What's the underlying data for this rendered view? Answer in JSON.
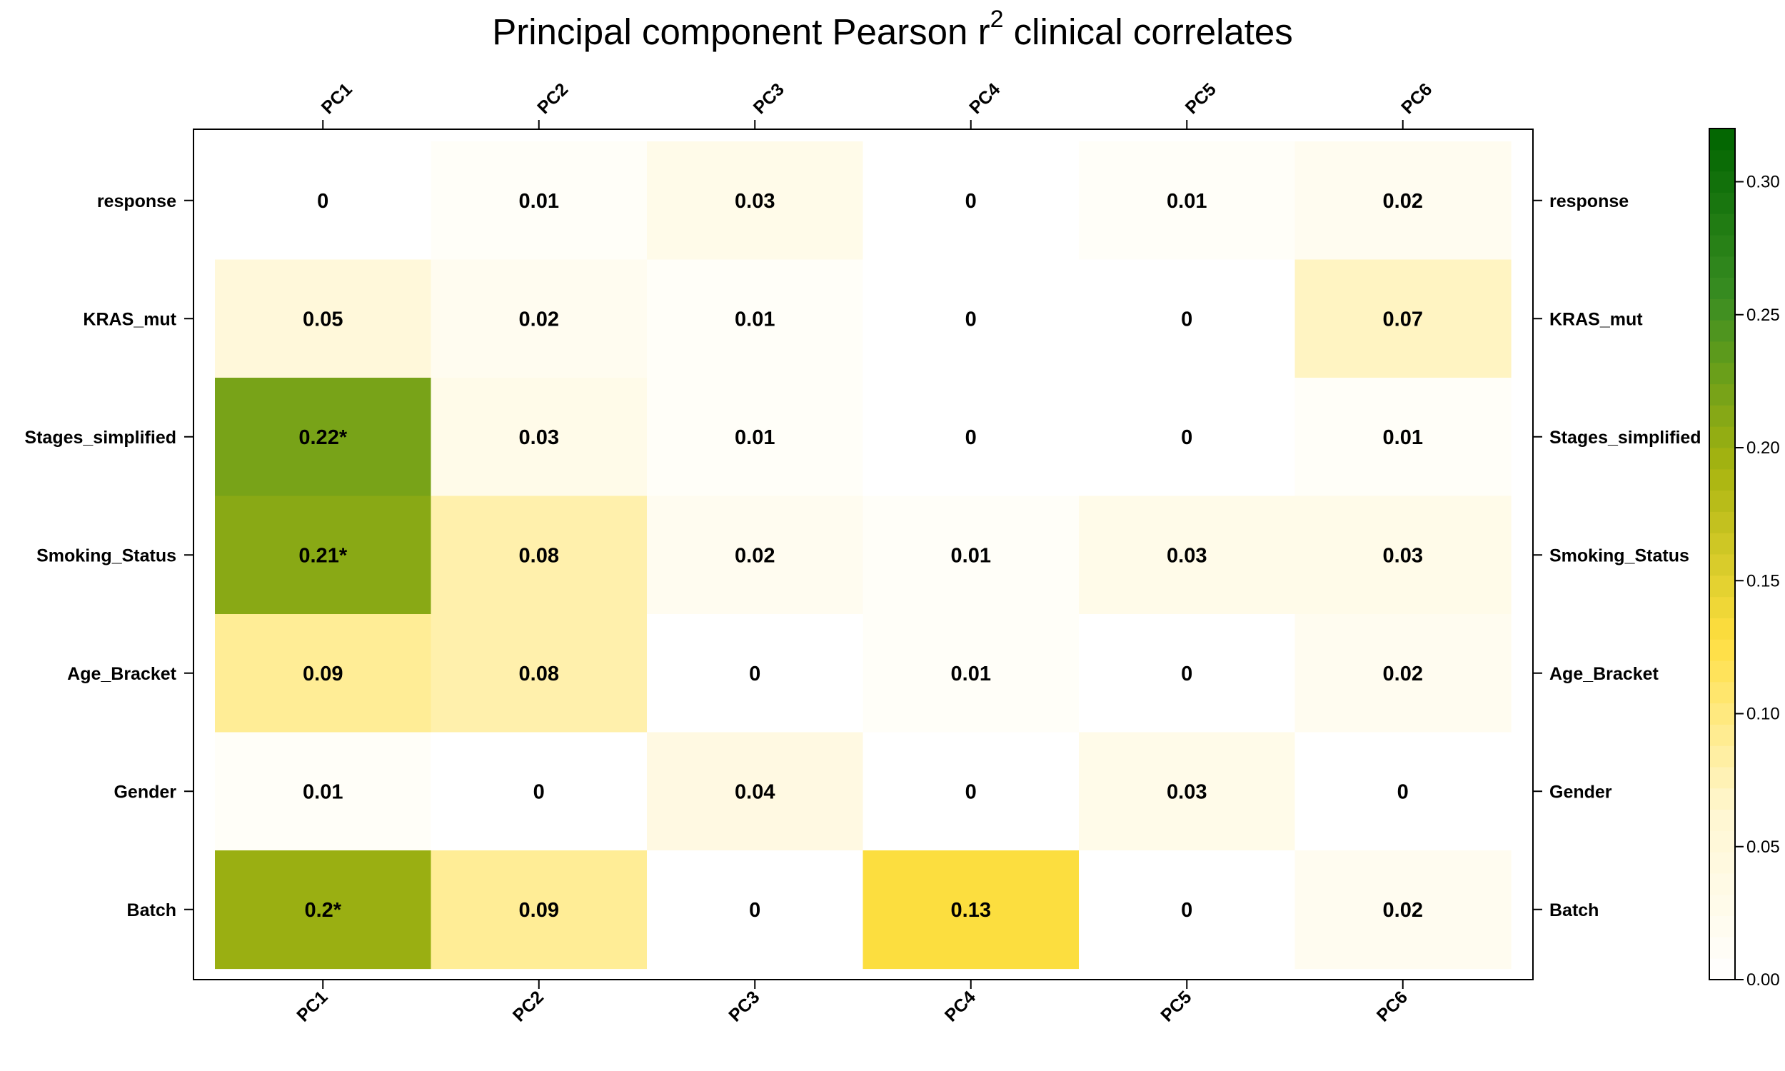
{
  "chart_data": {
    "type": "heatmap",
    "title": "Principal component Pearson r",
    "title_superscript": "2",
    "title_suffix": " clinical correlates",
    "columns": [
      "PC1",
      "PC2",
      "PC3",
      "PC4",
      "PC5",
      "PC6"
    ],
    "rows": [
      "response",
      "KRAS_mut",
      "Stages_simplified",
      "Smoking_Status",
      "Age_Bracket",
      "Gender",
      "Batch"
    ],
    "values": [
      [
        0,
        0.01,
        0.03,
        0,
        0.01,
        0.02
      ],
      [
        0.05,
        0.02,
        0.01,
        0,
        0,
        0.07
      ],
      [
        0.22,
        0.03,
        0.01,
        0,
        0,
        0.01
      ],
      [
        0.21,
        0.08,
        0.02,
        0.01,
        0.03,
        0.03
      ],
      [
        0.09,
        0.08,
        0,
        0.01,
        0,
        0.02
      ],
      [
        0.01,
        0,
        0.04,
        0,
        0.03,
        0
      ],
      [
        0.2,
        0.09,
        0,
        0.13,
        0,
        0.02
      ]
    ],
    "labels": [
      [
        "0",
        "0.01",
        "0.03",
        "0",
        "0.01",
        "0.02"
      ],
      [
        "0.05",
        "0.02",
        "0.01",
        "0",
        "0",
        "0.07"
      ],
      [
        "0.22*",
        "0.03",
        "0.01",
        "0",
        "0",
        "0.01"
      ],
      [
        "0.21*",
        "0.08",
        "0.02",
        "0.01",
        "0.03",
        "0.03"
      ],
      [
        "0.09",
        "0.08",
        "0",
        "0.01",
        "0",
        "0.02"
      ],
      [
        "0.01",
        "0",
        "0.04",
        "0",
        "0.03",
        "0"
      ],
      [
        "0.2*",
        "0.09",
        "0",
        "0.13",
        "0",
        "0.02"
      ]
    ],
    "colorbar": {
      "range": [
        0,
        0.32
      ],
      "ticks": [
        0.0,
        0.05,
        0.1,
        0.15,
        0.2,
        0.25,
        0.3
      ],
      "tick_labels": [
        "0.00",
        "0.05",
        "0.10",
        "0.15",
        "0.20",
        "0.25",
        "0.30"
      ],
      "colors": [
        "#ffffff",
        "#fff6d0",
        "#ffdf40",
        "#a8b410",
        "#3a8e22",
        "#006400"
      ]
    },
    "grid": false,
    "legend": "right"
  }
}
